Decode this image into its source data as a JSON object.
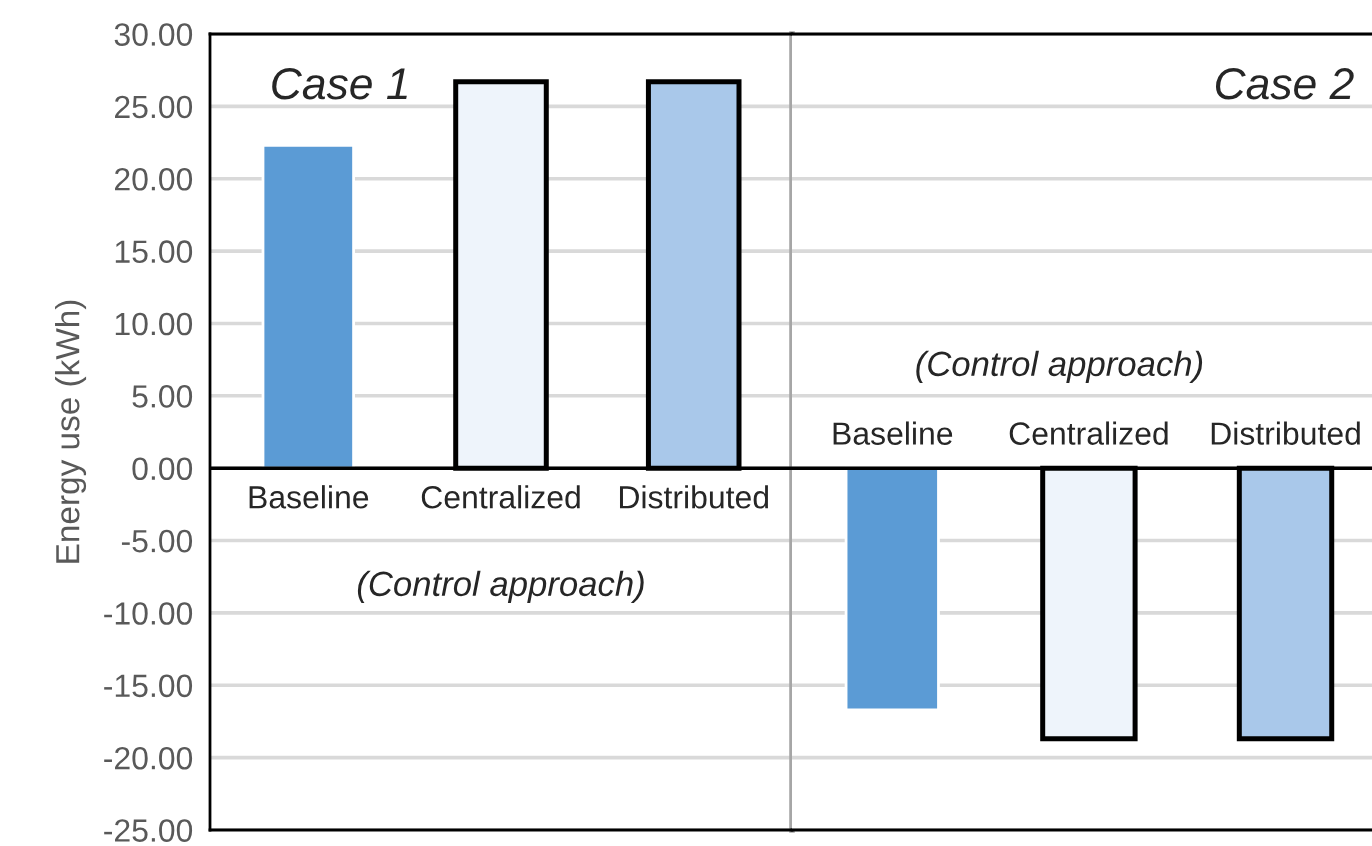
{
  "chart_data": [
    {
      "type": "bar",
      "ylabel": "Energy use (kWh)",
      "categories": [
        "Baseline",
        "Centralized",
        "Distributed"
      ],
      "values": [
        22.3,
        26.7,
        26.7
      ],
      "colors": [
        "#5b9bd5",
        "#eef4fb",
        "#a9c8ea"
      ],
      "ylim": [
        -25,
        30
      ],
      "yticks": [
        {
          "value": -25,
          "label": "-25.00"
        },
        {
          "value": -20,
          "label": "-20.00"
        },
        {
          "value": -15,
          "label": "-15.00"
        },
        {
          "value": -10,
          "label": "-10.00"
        },
        {
          "value": -5,
          "label": "-5.00"
        },
        {
          "value": 0,
          "label": "0.00"
        },
        {
          "value": 5,
          "label": "5.00"
        },
        {
          "value": 10,
          "label": "10.00"
        },
        {
          "value": 15,
          "label": "15.00"
        },
        {
          "value": 20,
          "label": "20.00"
        },
        {
          "value": 25,
          "label": "25.00"
        },
        {
          "value": 30,
          "label": "30.00"
        }
      ],
      "grid": "y",
      "annotations": [
        "Case 1",
        "(Control approach)"
      ]
    },
    {
      "type": "bar",
      "categories": [
        "Baseline",
        "Centralized",
        "Distributed"
      ],
      "values": [
        -16.7,
        -18.7,
        -18.7
      ],
      "colors": [
        "#5b9bd5",
        "#eef4fb",
        "#a9c8ea"
      ],
      "ylim": [
        -25,
        30
      ],
      "yticks": [
        {
          "value": -25,
          "label": null
        },
        {
          "value": -20,
          "label": null
        },
        {
          "value": -15,
          "label": null
        },
        {
          "value": -10,
          "label": null
        },
        {
          "value": -5,
          "label": null
        },
        {
          "value": 0,
          "label": null
        },
        {
          "value": 5,
          "label": null
        },
        {
          "value": 10,
          "label": null
        },
        {
          "value": 15,
          "label": null
        },
        {
          "value": 20,
          "label": null
        },
        {
          "value": 25,
          "label": null
        },
        {
          "value": 30,
          "label": null
        }
      ],
      "grid": "y",
      "tick_labels": "x",
      "annotations": [
        "Case 2",
        "(Control approach)"
      ]
    }
  ]
}
